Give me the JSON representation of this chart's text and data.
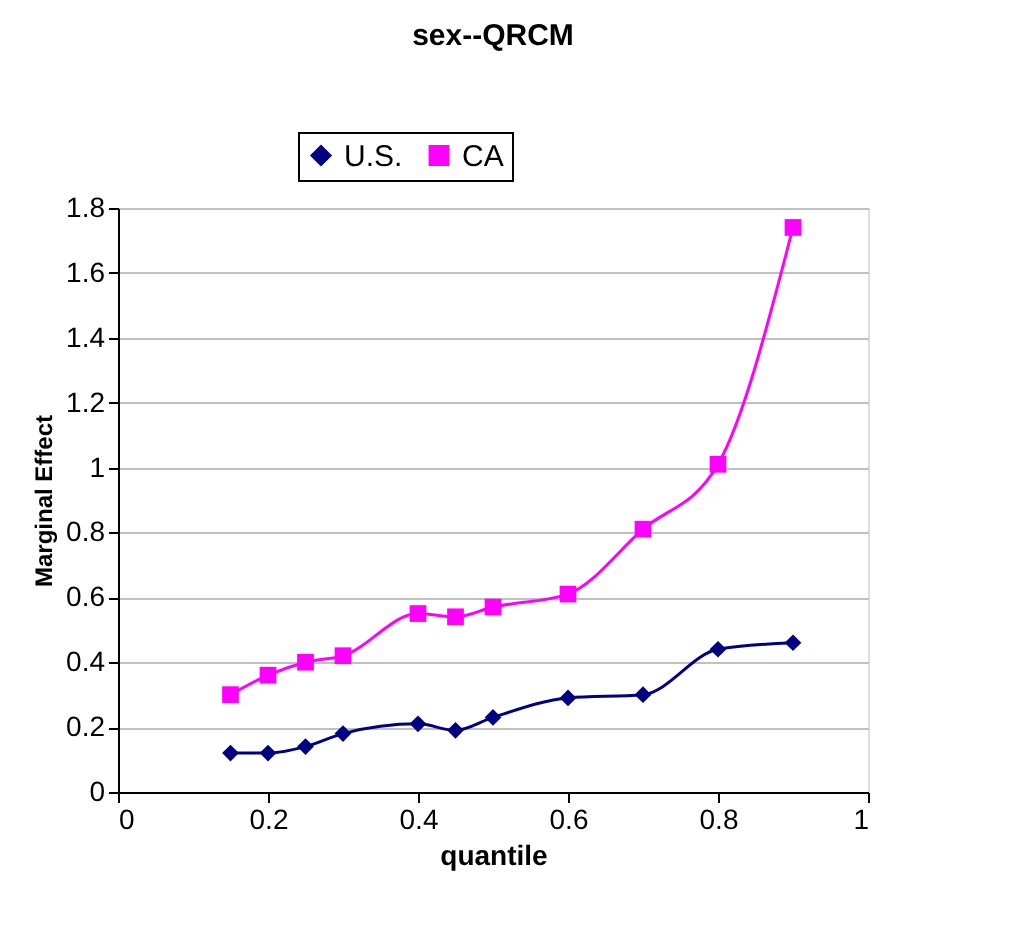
{
  "chart_data": {
    "type": "line",
    "title": "sex--QRCM",
    "xlabel": "quantile",
    "ylabel": "Marginal Effect",
    "x": [
      0.15,
      0.2,
      0.25,
      0.3,
      0.4,
      0.45,
      0.5,
      0.6,
      0.7,
      0.8,
      0.9
    ],
    "series": [
      {
        "name": "U.S.",
        "color": "#000080",
        "marker": "diamond",
        "values": [
          0.12,
          0.12,
          0.14,
          0.18,
          0.21,
          0.19,
          0.23,
          0.29,
          0.3,
          0.44,
          0.46
        ]
      },
      {
        "name": "CA",
        "color": "#ff00ff",
        "marker": "square",
        "values": [
          0.3,
          0.36,
          0.4,
          0.42,
          0.55,
          0.54,
          0.57,
          0.61,
          0.81,
          1.01,
          1.74
        ]
      }
    ],
    "xlim": [
      0,
      1
    ],
    "xticks": [
      0,
      0.2,
      0.4,
      0.6,
      0.8,
      1
    ],
    "ylim": [
      0,
      1.8
    ],
    "yticks": [
      0,
      0.2,
      0.4,
      0.6,
      0.8,
      1,
      1.2,
      1.4,
      1.6,
      1.8
    ],
    "grid": "y",
    "legend": "top",
    "line_style": "solid"
  }
}
